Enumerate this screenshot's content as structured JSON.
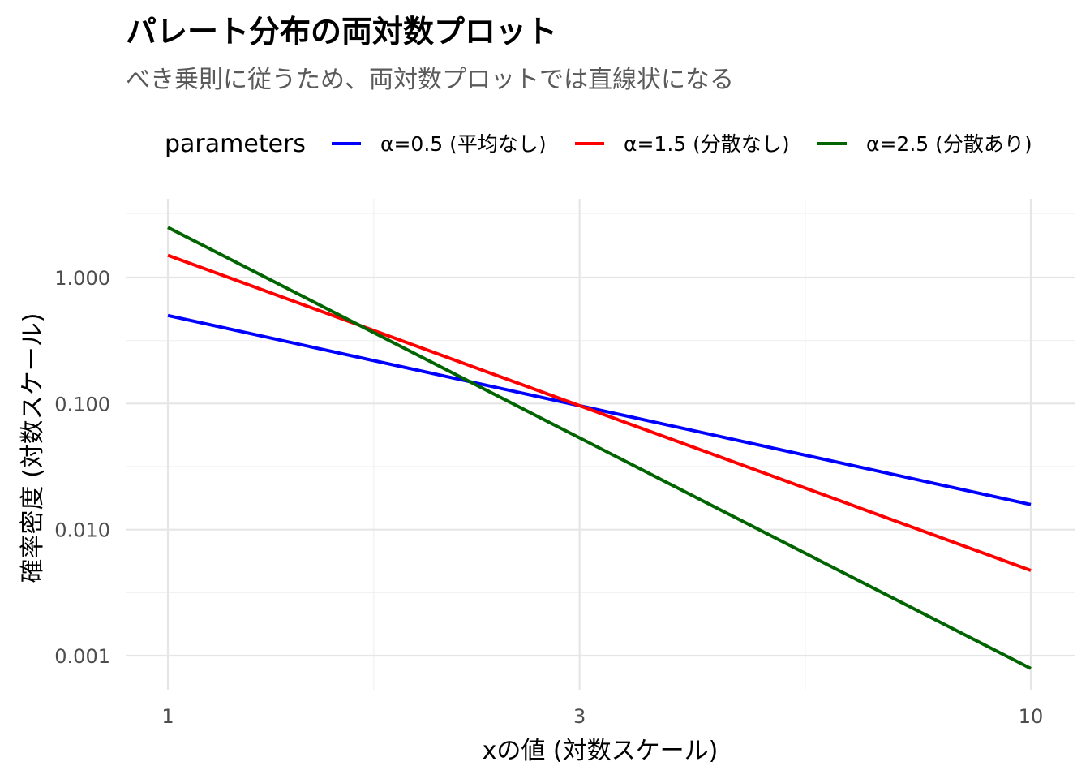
{
  "chart_data": {
    "type": "line",
    "title": "パレート分布の両対数プロット",
    "subtitle": "べき乗則に従うため、両対数プロットでは直線状になる",
    "xlabel": "xの値 (対数スケール)",
    "ylabel": "確率密度 (対数スケール)",
    "x_scale": "log10",
    "y_scale": "log10",
    "xlim": [
      1,
      10
    ],
    "ylim": [
      0.001,
      2.5
    ],
    "x_ticks": [
      1,
      3,
      10
    ],
    "x_tick_labels": [
      "1",
      "3",
      "10"
    ],
    "y_ticks": [
      0.001,
      0.01,
      0.1,
      1
    ],
    "y_tick_labels": [
      "0.001",
      "0.010",
      "0.100",
      "1.000"
    ],
    "grid": true,
    "legend": {
      "title": "parameters",
      "position": "top"
    },
    "series": [
      {
        "name": "α=0.5 (平均なし)",
        "alpha": 0.5,
        "color": "#0000ff",
        "x": [
          1,
          10
        ],
        "y": [
          0.5,
          0.0158
        ]
      },
      {
        "name": "α=1.5 (分散なし)",
        "alpha": 1.5,
        "color": "#ff0000",
        "x": [
          1,
          10
        ],
        "y": [
          1.5,
          0.00474
        ]
      },
      {
        "name": "α=2.5 (分散あり)",
        "alpha": 2.5,
        "color": "#006400",
        "x": [
          1,
          10
        ],
        "y": [
          2.5,
          0.00079
        ]
      }
    ]
  }
}
